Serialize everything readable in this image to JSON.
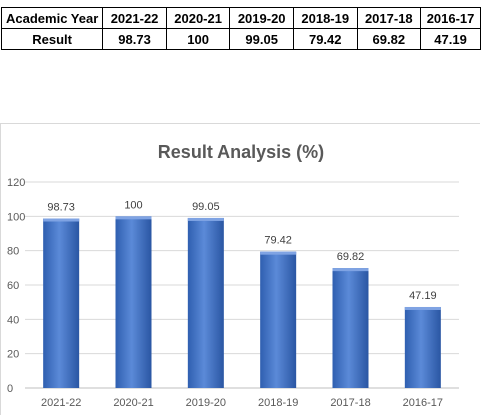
{
  "table": {
    "header_label": "Academic Year",
    "row_label": "Result",
    "years": [
      "2021-22",
      "2020-21",
      "2019-20",
      "2018-19",
      "2017-18",
      "2016-17"
    ],
    "results": [
      "98.73",
      "100",
      "99.05",
      "79.42",
      "69.82",
      "47.19"
    ]
  },
  "chart_data": {
    "type": "bar",
    "title": "Result Analysis (%)",
    "categories": [
      "2021-22",
      "2020-21",
      "2019-20",
      "2018-19",
      "2017-18",
      "2016-17"
    ],
    "values": [
      98.73,
      100,
      99.05,
      79.42,
      69.82,
      47.19
    ],
    "data_labels": [
      "98.73",
      "100",
      "99.05",
      "79.42",
      "69.82",
      "47.19"
    ],
    "ylim": [
      0,
      120
    ],
    "yticks": [
      0,
      20,
      40,
      60,
      80,
      100,
      120
    ],
    "grid": true,
    "bar_color": "#4472c4",
    "bar_color_dark": "#2f5597"
  }
}
